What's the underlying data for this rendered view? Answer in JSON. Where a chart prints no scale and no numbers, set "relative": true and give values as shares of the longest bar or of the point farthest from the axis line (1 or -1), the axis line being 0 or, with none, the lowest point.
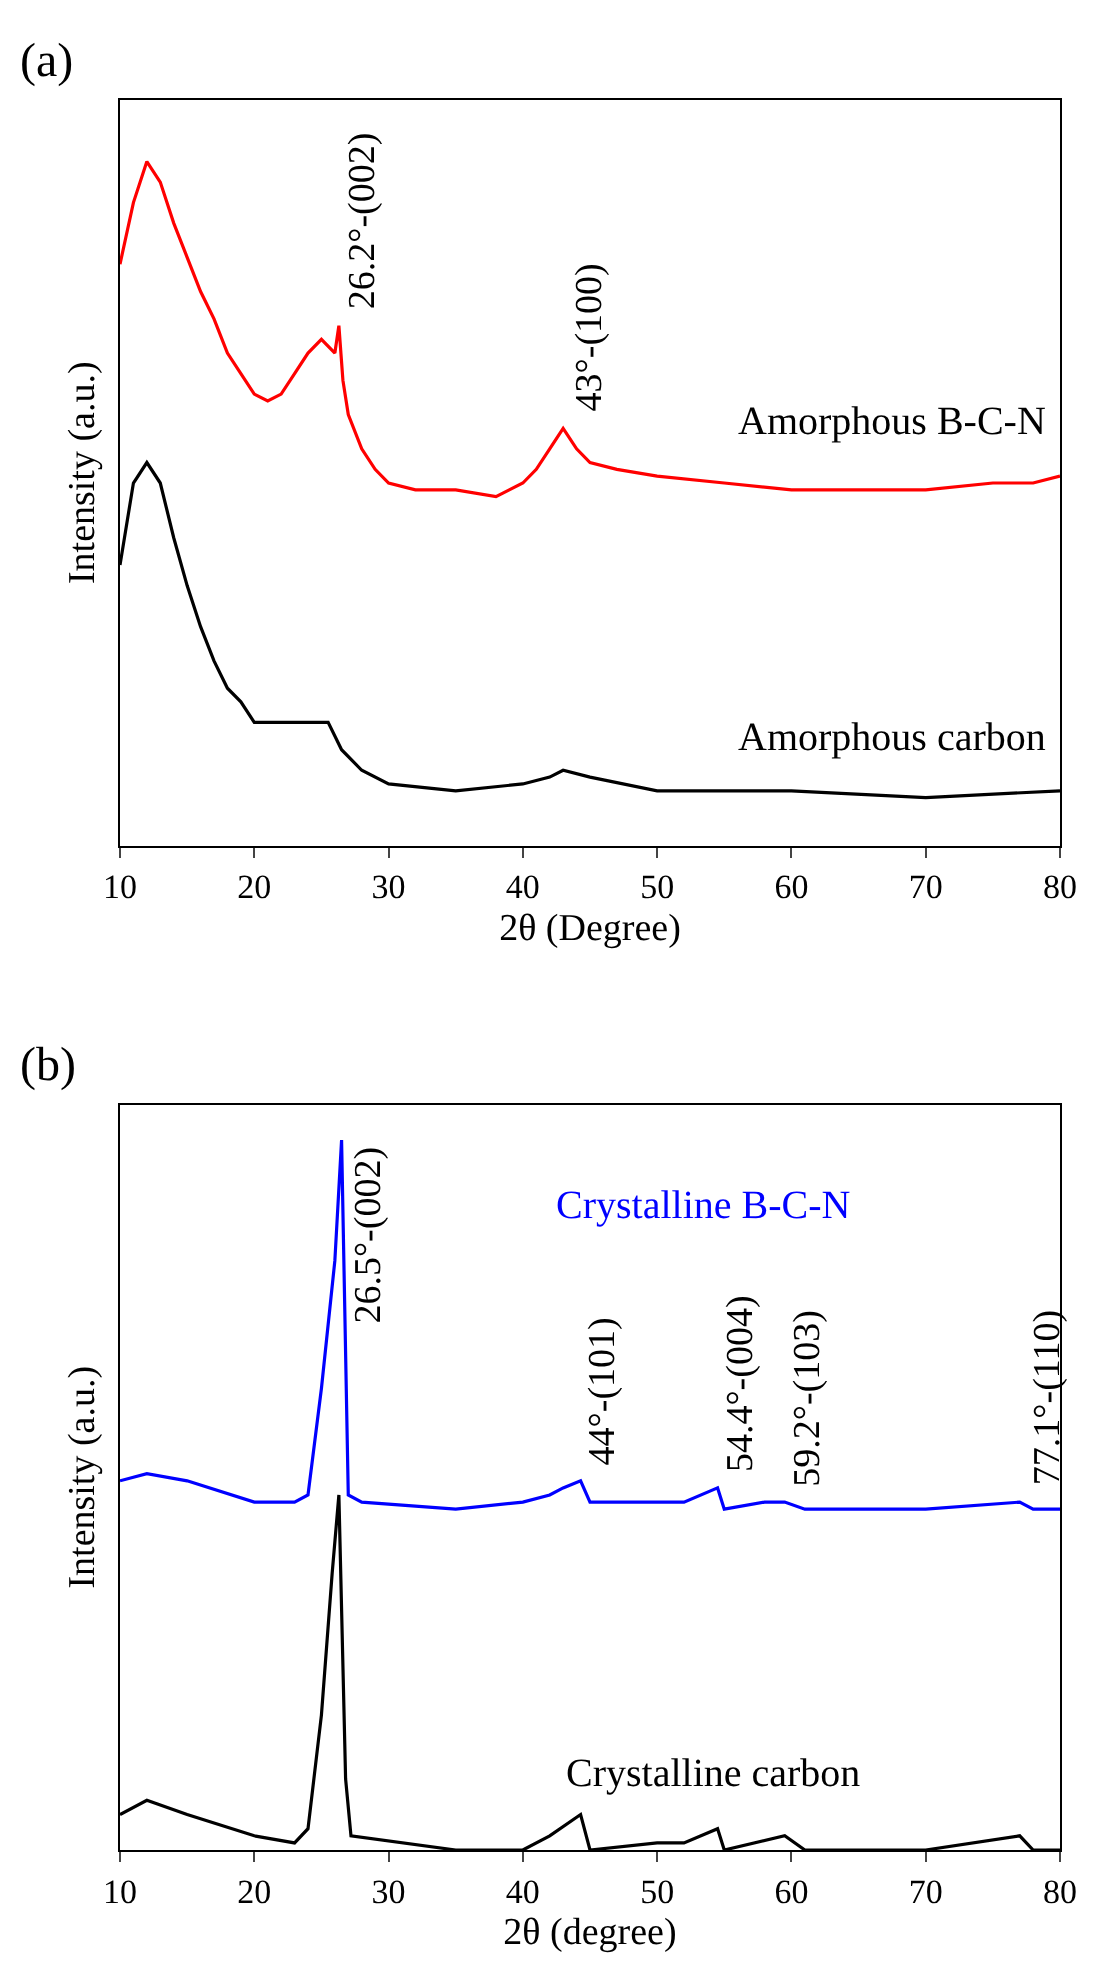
{
  "chart_data": [
    {
      "type": "line",
      "relative": true,
      "xlabel": "2θ (Degree)",
      "ylabel": "Intensity (a.u.)",
      "xlim": [
        10,
        80
      ],
      "xticks": [
        10,
        20,
        30,
        40,
        50,
        60,
        70,
        80
      ],
      "tick_labels": "x",
      "annotations": [
        "(a)",
        {
          "text": "26.2°-(002)",
          "x": 26.2,
          "y": 0.76
        },
        {
          "text": "43°-(100)",
          "x": 43,
          "y": 0.61
        }
      ],
      "series": [
        {
          "name": "Amorphous B-C-N",
          "color": "#ff0000",
          "x": [
            10,
            11,
            12,
            13,
            14,
            15,
            16,
            17,
            18,
            19,
            20,
            21,
            22,
            23,
            24,
            25,
            26,
            26.3,
            26.6,
            27,
            28,
            29,
            30,
            32,
            35,
            38,
            40,
            41,
            42,
            43,
            44,
            45,
            47,
            50,
            55,
            60,
            65,
            70,
            75,
            78,
            80
          ],
          "values": [
            0.85,
            0.94,
            1.0,
            0.97,
            0.91,
            0.86,
            0.81,
            0.77,
            0.72,
            0.69,
            0.66,
            0.65,
            0.66,
            0.69,
            0.72,
            0.74,
            0.72,
            0.76,
            0.68,
            0.63,
            0.58,
            0.55,
            0.53,
            0.52,
            0.52,
            0.51,
            0.53,
            0.55,
            0.58,
            0.61,
            0.58,
            0.56,
            0.55,
            0.54,
            0.53,
            0.52,
            0.52,
            0.52,
            0.53,
            0.53,
            0.54
          ]
        },
        {
          "name": "Amorphous carbon",
          "color": "#000000",
          "x": [
            10,
            11,
            12,
            13,
            14,
            15,
            16,
            17,
            18,
            19,
            20,
            22,
            24,
            25.5,
            26.5,
            28,
            30,
            35,
            40,
            42,
            43,
            45,
            50,
            60,
            70,
            80
          ],
          "values": [
            0.41,
            0.53,
            0.56,
            0.53,
            0.45,
            0.38,
            0.32,
            0.27,
            0.23,
            0.21,
            0.18,
            0.18,
            0.18,
            0.18,
            0.14,
            0.11,
            0.09,
            0.08,
            0.09,
            0.1,
            0.11,
            0.1,
            0.08,
            0.08,
            0.07,
            0.08
          ]
        }
      ]
    },
    {
      "type": "line",
      "relative": true,
      "xlabel": "2θ (degree)",
      "ylabel": "Intensity (a.u.)",
      "xlim": [
        10,
        80
      ],
      "xticks": [
        10,
        20,
        30,
        40,
        50,
        60,
        70,
        80
      ],
      "tick_labels": "x",
      "annotations": [
        "(b)",
        {
          "text": "26.5°-(002)",
          "x": 26.5,
          "y": 1.0
        },
        {
          "text": "44°-(101)",
          "x": 44,
          "y": 0.52
        },
        {
          "text": "54.4°-(004)",
          "x": 54.4,
          "y": 0.51
        },
        {
          "text": "59.2°-(103)",
          "x": 59.2,
          "y": 0.49
        },
        {
          "text": "77.1°-(110)",
          "x": 77.1,
          "y": 0.49
        }
      ],
      "series": [
        {
          "name": "Crystalline B-C-N",
          "color": "#0000ff",
          "x": [
            10,
            12,
            15,
            20,
            23,
            24,
            25,
            26,
            26.5,
            27,
            28,
            35,
            40,
            42,
            43,
            44.3,
            45,
            50,
            52,
            54.5,
            55,
            58,
            59.5,
            61,
            70,
            77,
            78,
            80
          ],
          "values": [
            0.52,
            0.53,
            0.52,
            0.49,
            0.49,
            0.5,
            0.65,
            0.83,
            1.0,
            0.5,
            0.49,
            0.48,
            0.49,
            0.5,
            0.51,
            0.52,
            0.49,
            0.49,
            0.49,
            0.51,
            0.48,
            0.49,
            0.49,
            0.48,
            0.48,
            0.49,
            0.48,
            0.48
          ]
        },
        {
          "name": "Crystalline carbon",
          "color": "#000000",
          "x": [
            10,
            12,
            15,
            20,
            23,
            24,
            25,
            25.8,
            26.3,
            26.8,
            27.2,
            35,
            40,
            42,
            44.3,
            45,
            50,
            52,
            54.5,
            55,
            59.5,
            61,
            70,
            77,
            78,
            80
          ],
          "values": [
            0.05,
            0.07,
            0.05,
            0.02,
            0.01,
            0.03,
            0.19,
            0.39,
            0.5,
            0.1,
            0.02,
            0.0,
            0.0,
            0.02,
            0.05,
            0.0,
            0.01,
            0.01,
            0.03,
            0.0,
            0.02,
            0.0,
            0.0,
            0.02,
            0.0,
            0.0
          ]
        }
      ]
    }
  ]
}
